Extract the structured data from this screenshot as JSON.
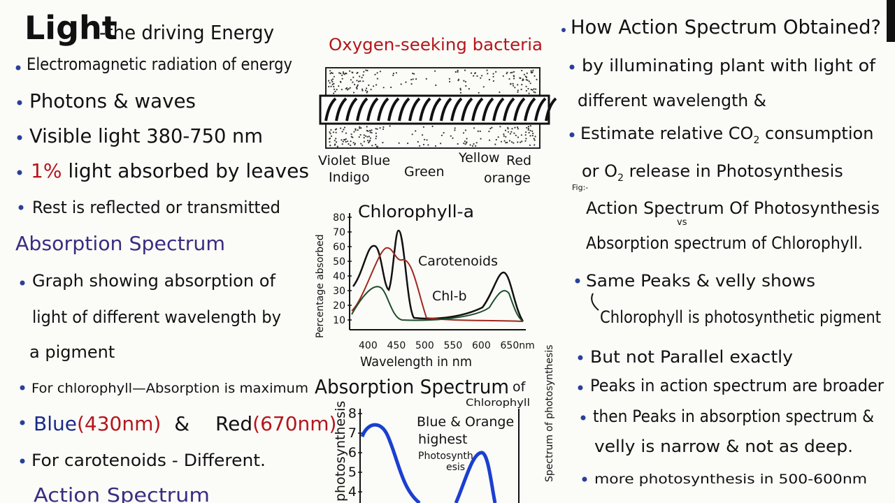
{
  "left": {
    "title": "Light",
    "title_rest": "-the driving Energy",
    "bullets": [
      "Electromagnetic radiation of energy",
      "Photons & waves",
      "Visible light 380-750 nm",
      [
        "1%",
        "light absorbed by leaves"
      ],
      "Rest is reflected or transmitted"
    ],
    "absorption_heading": "Absorption Spectrum",
    "absorption_def": [
      "Graph showing absorption of",
      "light of different wavelength by",
      "a pigment"
    ],
    "chlorophyll_line": "For chlorophyll—Absorption is maximum",
    "maxima": [
      "Blue",
      "(430nm)",
      "&",
      "Red",
      "(670nm)"
    ],
    "carotenoids_line": "For carotenoids - Different.",
    "action_heading": "Action Spectrum"
  },
  "middle": {
    "bacteria_title": "Oxygen-seeking bacteria",
    "colors": [
      "Violet",
      "Blue",
      "Indigo",
      "Green",
      "Yellow",
      "Red",
      "orange"
    ],
    "graph1": {
      "labels": [
        "Chlorophyll-a",
        "Carotenoids",
        "Chl-b"
      ],
      "y_label": "Percentage absorbed",
      "yticks": [
        80,
        70,
        60,
        50,
        40,
        30,
        20,
        10
      ],
      "xticks": [
        "400",
        "450",
        "500",
        "550",
        "600",
        "650nm"
      ],
      "x_label": "Wavelength in nm"
    },
    "graph2_heading": "Absorption Spectrum",
    "graph2_heading_of": "of",
    "graph2_heading_pigment": "Chlorophyll",
    "graph2": {
      "note": [
        "Blue & Orange",
        "highest",
        "Photosynth",
        "esis"
      ],
      "y_label_left": "photosynthesis",
      "y_label_right": "Spectrum of photosynthesis",
      "yticks": [
        8,
        7,
        6,
        5,
        4
      ]
    }
  },
  "right": {
    "title": "How Action Spectrum Obtained?",
    "steps": [
      "by illuminating plant with light of",
      "different wavelength &"
    ],
    "estimate": [
      "Estimate relative CO",
      "2",
      "consumption"
    ],
    "release": [
      "or O",
      "2",
      "release  in Photosynthesis"
    ],
    "fig": "Fig:-",
    "fig_title": [
      "Action Spectrum Of Photosynthesis",
      "vs",
      "Absorption spectrum of Chlorophyll."
    ],
    "points": [
      "Same Peaks & velly shows",
      "Chlorophyll is photosynthetic pigment",
      "But not Parallel exactly",
      "Peaks in action spectrum are broader",
      "then Peaks in absorption spectrum &",
      "velly is narrow & not as deep.",
      "more photosynthesis in 500-600nm"
    ]
  }
}
